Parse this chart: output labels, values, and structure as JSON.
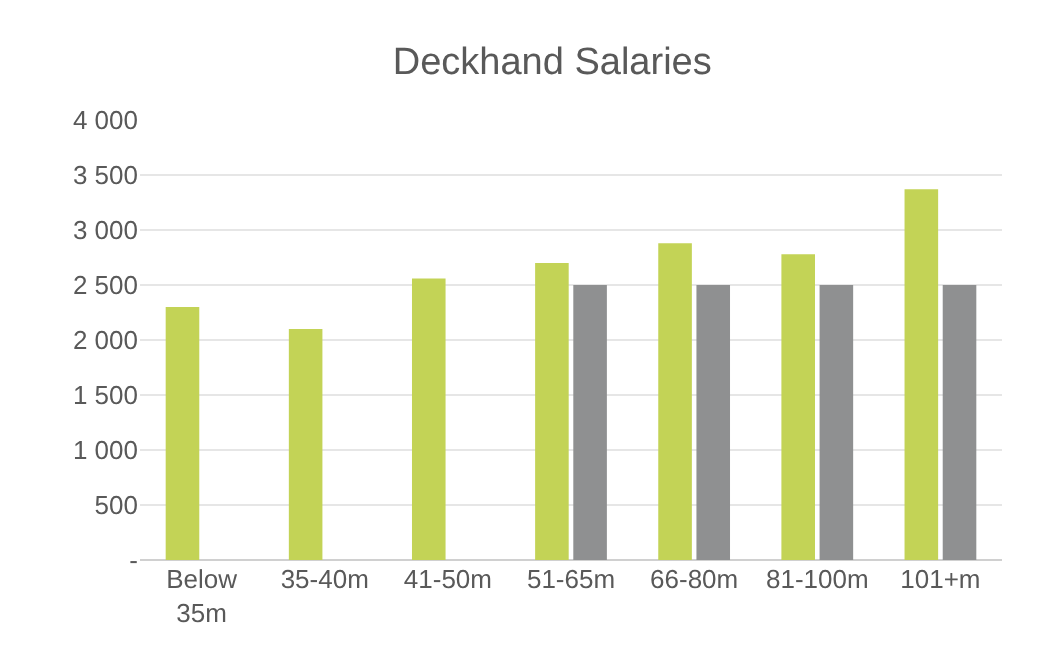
{
  "chart_data": {
    "type": "bar",
    "title": "Deckhand Salaries",
    "categories": [
      "Below 35m",
      "35-40m",
      "41-50m",
      "51-65m",
      "66-80m",
      "81-100m",
      "101+m"
    ],
    "series": [
      {
        "color": "#c3d356",
        "values": [
          2300,
          2100,
          2560,
          2700,
          2880,
          2780,
          3370
        ]
      },
      {
        "color": "#8f9091",
        "values": [
          null,
          null,
          null,
          2500,
          2500,
          2500,
          2500
        ]
      }
    ],
    "ylim": [
      0,
      4000
    ],
    "yticks": [
      {
        "value": 0,
        "label": "-"
      },
      {
        "value": 500,
        "label": "500"
      },
      {
        "value": 1000,
        "label": "1 000"
      },
      {
        "value": 1500,
        "label": "1 500"
      },
      {
        "value": 2000,
        "label": "2 000"
      },
      {
        "value": 2500,
        "label": "2 500"
      },
      {
        "value": 3000,
        "label": "3 000"
      },
      {
        "value": 3500,
        "label": "3 500"
      },
      {
        "value": 4000,
        "label": "4 000"
      }
    ],
    "grid": "y"
  }
}
